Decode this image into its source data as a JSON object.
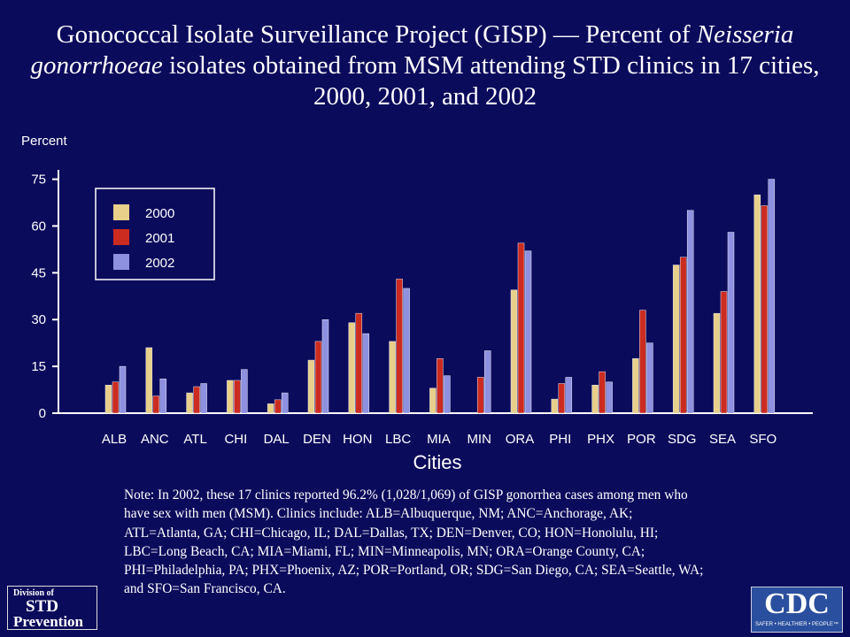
{
  "chart_data": {
    "type": "bar",
    "title_parts": [
      "Gonococcal Isolate Surveillance Project (GISP) — Percent of",
      "Neisseria gonorrhoeae",
      "isolates obtained from MSM attending STD clinics in 17 cities, 2000, 2001, and 2002"
    ],
    "y_label": "Percent",
    "x_label": "Cities",
    "categories": [
      "ALB",
      "ANC",
      "ATL",
      "CHI",
      "DAL",
      "DEN",
      "HON",
      "LBC",
      "MIA",
      "MIN",
      "ORA",
      "PHI",
      "PHX",
      "POR",
      "SDG",
      "SEA",
      "SFO"
    ],
    "series": [
      {
        "name": "2000",
        "color": "#e8cf8a",
        "values": [
          9,
          21,
          6.5,
          10.5,
          3,
          17,
          29,
          23,
          8,
          null,
          39.5,
          4.5,
          9,
          17.5,
          47.5,
          32,
          70
        ]
      },
      {
        "name": "2001",
        "color": "#cc2b20",
        "values": [
          10,
          5.5,
          8.5,
          10.5,
          4.3,
          23,
          32,
          43,
          17.5,
          11.5,
          54.5,
          9.5,
          13.3,
          33,
          50,
          39,
          66.5
        ]
      },
      {
        "name": "2002",
        "color": "#8e90e0",
        "values": [
          15,
          11,
          9.5,
          14,
          6.5,
          30,
          25.5,
          40,
          12,
          20,
          52,
          11.5,
          10,
          22.5,
          65,
          58,
          75
        ]
      }
    ],
    "ylim": [
      0,
      78
    ],
    "yticks": [
      0,
      15,
      30,
      45,
      60,
      75
    ],
    "legend": "upper left"
  },
  "note": "Note: In 2002, these 17 clinics reported 96.2% (1,028/1,069) of GISP gonorrhea cases among men who have sex with men (MSM). Clinics include: ALB=Albuquerque, NM; ANC=Anchorage, AK; ATL=Atlanta, GA; CHI=Chicago, IL; DAL=Dallas, TX; DEN=Denver, CO; HON=Honolulu, HI; LBC=Long Beach, CA; MIA=Miami, FL; MIN=Minneapolis, MN; ORA=Orange County, CA; PHI=Philadelphia, PA; PHX=Phoenix, AZ; POR=Portland, OR; SDG=San Diego, CA; SEA=Seattle, WA; and SFO=San Francisco, CA.",
  "logos": {
    "std": [
      "Division of",
      "STD",
      "Prevention"
    ],
    "cdc": [
      "CDC",
      "SAFER • HEALTHIER • PEOPLE™"
    ]
  }
}
